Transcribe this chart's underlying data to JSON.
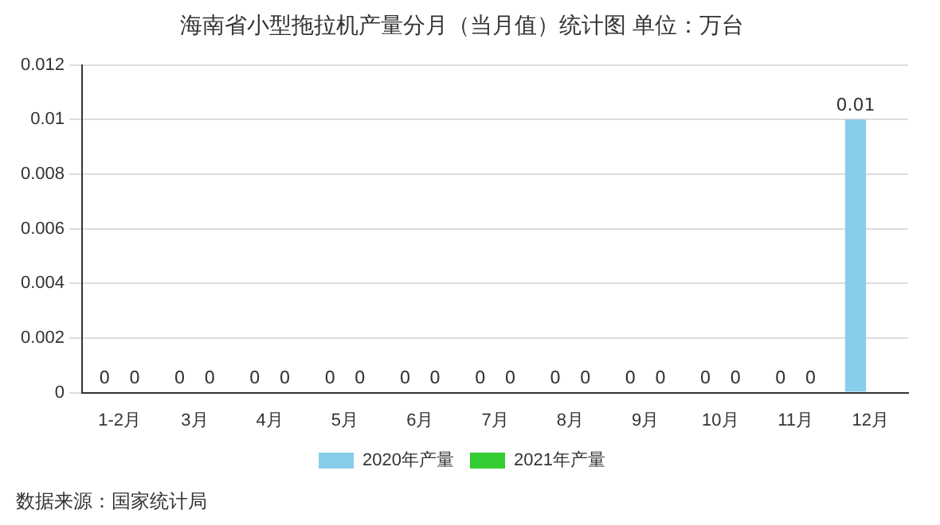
{
  "chart_data": {
    "type": "bar",
    "title": "海南省小型拖拉机产量分月（当月值）统计图 单位：万台",
    "categories": [
      "1-2月",
      "3月",
      "4月",
      "5月",
      "6月",
      "7月",
      "8月",
      "9月",
      "10月",
      "11月",
      "12月"
    ],
    "series": [
      {
        "name": "2020年产量",
        "color": "#87ceeb",
        "values": [
          0,
          0,
          0,
          0,
          0,
          0,
          0,
          0,
          0,
          0,
          0.01
        ]
      },
      {
        "name": "2021年产量",
        "color": "#33cc33",
        "values": [
          0,
          0,
          0,
          0,
          0,
          0,
          0,
          0,
          0,
          0,
          null
        ]
      }
    ],
    "ylim": [
      0,
      0.012
    ],
    "yticks": [
      0,
      0.002,
      0.004,
      0.006,
      0.008,
      0.01,
      0.012
    ],
    "grid": "y",
    "legend": "bottom",
    "data_labels": true,
    "annotations": [
      "数据来源：国家统计局"
    ]
  }
}
